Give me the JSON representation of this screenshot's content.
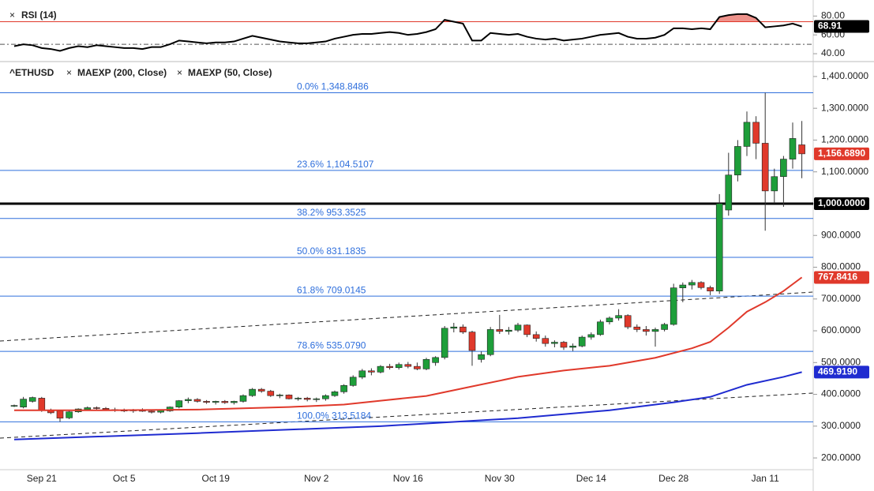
{
  "chart_data": [
    {
      "type": "line",
      "title": "RSI (14)",
      "color": "#000000",
      "values": [
        48,
        50,
        49,
        46,
        45,
        43,
        46,
        48,
        47,
        49,
        48,
        47,
        46,
        46,
        45,
        47,
        47,
        50,
        54,
        53,
        52,
        51,
        52,
        52,
        53,
        56,
        59,
        57,
        55,
        53,
        52,
        51,
        51,
        52,
        53,
        56,
        58,
        60,
        61,
        61,
        62,
        63,
        62,
        60,
        61,
        63,
        66,
        76,
        74,
        72,
        54,
        54,
        62,
        61,
        60,
        61,
        58,
        56,
        55,
        56,
        54,
        55,
        56,
        58,
        60,
        61,
        62,
        58,
        56,
        56,
        57,
        60,
        67,
        67,
        66,
        67,
        66,
        79,
        81,
        82,
        82,
        78,
        68,
        69,
        70,
        72,
        68.91
      ],
      "last_value_label": "68.91",
      "ylim": [
        35,
        92
      ],
      "yticks": [
        {
          "value": 80,
          "label": "80.00"
        },
        {
          "value": 60,
          "label": "60.00"
        },
        {
          "value": 40,
          "label": "40.00"
        }
      ],
      "levels": [
        74,
        50
      ],
      "level_colors": [
        "#e0392b",
        "#555555"
      ],
      "fill_color": "#e0392b"
    },
    {
      "type": "candlestick",
      "categories": [
        null,
        null,
        null,
        "Sep 21",
        null,
        null,
        null,
        null,
        null,
        null,
        null,
        null,
        "Oct 5",
        null,
        null,
        null,
        null,
        null,
        null,
        null,
        null,
        null,
        "Oct 19",
        null,
        null,
        null,
        null,
        null,
        null,
        null,
        null,
        null,
        null,
        "Nov 2",
        null,
        null,
        null,
        null,
        null,
        null,
        null,
        null,
        null,
        "Nov 16",
        null,
        null,
        null,
        null,
        null,
        null,
        null,
        null,
        null,
        "Nov 30",
        null,
        null,
        null,
        null,
        null,
        null,
        null,
        null,
        null,
        "Dec 14",
        null,
        null,
        null,
        null,
        null,
        null,
        null,
        null,
        "Dec 28",
        null,
        null,
        null,
        null,
        null,
        null,
        null,
        null,
        null,
        "Jan 11",
        null,
        null,
        null,
        null
      ],
      "series": [
        {
          "name": "^ETHUSD",
          "up_color": "#1e9e3a",
          "down_color": "#e0392b",
          "ohlc": [
            [
              363,
              368,
              360,
              365
            ],
            [
              360,
              392,
              356,
              385
            ],
            [
              378,
              393,
              374,
              390
            ],
            [
              388,
              392,
              345,
              350
            ],
            [
              350,
              355,
              338,
              342
            ],
            [
              348,
              350,
              313.5184,
              325
            ],
            [
              326,
              350,
              322,
              345
            ],
            [
              345,
              356,
              342,
              354
            ],
            [
              352,
              362,
              348,
              358
            ],
            [
              358,
              362,
              352,
              356
            ],
            [
              356,
              360,
              348,
              352
            ],
            [
              352,
              358,
              345,
              350
            ],
            [
              350,
              355,
              344,
              348
            ],
            [
              348,
              354,
              342,
              352
            ],
            [
              352,
              356,
              345,
              347
            ],
            [
              347,
              352,
              340,
              344
            ],
            [
              344,
              352,
              340,
              350
            ],
            [
              348,
              362,
              345,
              360
            ],
            [
              360,
              382,
              356,
              380
            ],
            [
              380,
              390,
              372,
              384
            ],
            [
              384,
              388,
              374,
              378
            ],
            [
              378,
              382,
              370,
              375
            ],
            [
              375,
              380,
              368,
              378
            ],
            [
              378,
              382,
              370,
              374
            ],
            [
              374,
              380,
              368,
              378
            ],
            [
              378,
              400,
              374,
              396
            ],
            [
              396,
              420,
              392,
              416
            ],
            [
              416,
              420,
              405,
              410
            ],
            [
              410,
              414,
              392,
              396
            ],
            [
              396,
              402,
              388,
              398
            ],
            [
              398,
              400,
              384,
              386
            ],
            [
              386,
              392,
              380,
              388
            ],
            [
              388,
              392,
              378,
              384
            ],
            [
              384,
              390,
              376,
              386
            ],
            [
              386,
              400,
              380,
              396
            ],
            [
              396,
              412,
              392,
              408
            ],
            [
              408,
              432,
              402,
              428
            ],
            [
              428,
              460,
              424,
              454
            ],
            [
              454,
              480,
              448,
              474
            ],
            [
              474,
              482,
              460,
              470
            ],
            [
              470,
              492,
              466,
              488
            ],
            [
              488,
              496,
              478,
              484
            ],
            [
              484,
              500,
              478,
              494
            ],
            [
              494,
              502,
              482,
              488
            ],
            [
              488,
              500,
              476,
              480
            ],
            [
              480,
              515,
              476,
              510
            ],
            [
              500,
              520,
              490,
              516
            ],
            [
              516,
              615,
              510,
              608
            ],
            [
              608,
              625,
              595,
              612
            ],
            [
              612,
              620,
              590,
              596
            ],
            [
              596,
              600,
              490,
              538
            ],
            [
              510,
              535,
              500,
              525
            ],
            [
              525,
              612,
              520,
              604
            ],
            [
              604,
              650,
              590,
              598
            ],
            [
              598,
              612,
              588,
              602
            ],
            [
              602,
              625,
              596,
              618
            ],
            [
              618,
              620,
              580,
              588
            ],
            [
              588,
              598,
              566,
              576
            ],
            [
              576,
              585,
              550,
              560
            ],
            [
              560,
              570,
              548,
              564
            ],
            [
              564,
              568,
              540,
              548
            ],
            [
              548,
              560,
              536,
              552
            ],
            [
              552,
              585,
              548,
              580
            ],
            [
              580,
              595,
              572,
              588
            ],
            [
              588,
              635,
              584,
              628
            ],
            [
              628,
              645,
              620,
              640
            ],
            [
              640,
              668,
              632,
              648
            ],
            [
              648,
              652,
              605,
              612
            ],
            [
              612,
              620,
              596,
              604
            ],
            [
              604,
              615,
              585,
              598
            ],
            [
              598,
              610,
              550,
              604
            ],
            [
              604,
              625,
              598,
              620
            ],
            [
              620,
              748,
              616,
              735
            ],
            [
              735,
              752,
              690,
              744
            ],
            [
              744,
              760,
              730,
              752
            ],
            [
              752,
              756,
              730,
              736
            ],
            [
              736,
              742,
              712,
              725
            ],
            [
              725,
              1030,
              716,
              1000
            ],
            [
              980,
              1160,
              962,
              1090
            ],
            [
              1090,
              1200,
              1070,
              1180
            ],
            [
              1180,
              1290,
              1150,
              1256
            ],
            [
              1256,
              1275,
              1140,
              1190
            ],
            [
              1190,
              1348.8486,
              915,
              1040
            ],
            [
              1040,
              1110,
              1000,
              1085
            ],
            [
              1085,
              1150,
              990,
              1140
            ],
            [
              1140,
              1255,
              1110,
              1205
            ],
            [
              1185,
              1260,
              1080,
              1156.689
            ]
          ]
        },
        {
          "name": "MAEXP (200, Close)",
          "color": "#1f2bd0",
          "x": [
            0,
            20,
            40,
            55,
            65,
            72,
            76,
            80,
            84,
            86
          ],
          "values": [
            258,
            278,
            300,
            325,
            350,
            375,
            392,
            430,
            455,
            470
          ]
        },
        {
          "name": "MAEXP (50, Close)",
          "color": "#e0392b",
          "x": [
            0,
            10,
            20,
            30,
            36,
            40,
            45,
            50,
            55,
            60,
            65,
            70,
            74,
            76,
            78,
            80,
            82,
            84,
            86
          ],
          "values": [
            350,
            350,
            352,
            360,
            368,
            380,
            395,
            425,
            455,
            475,
            490,
            515,
            545,
            565,
            610,
            660,
            690,
            725,
            768
          ]
        }
      ],
      "ylim": [
        163,
        1437
      ],
      "yticks": [
        {
          "value": 200,
          "label": "200.0000"
        },
        {
          "value": 300,
          "label": "300.0000"
        },
        {
          "value": 400,
          "label": "400.0000"
        },
        {
          "value": 500,
          "label": "500.0000"
        },
        {
          "value": 600,
          "label": "600.0000"
        },
        {
          "value": 700,
          "label": "700.0000"
        },
        {
          "value": 800,
          "label": "800.0000"
        },
        {
          "value": 900,
          "label": "900.0000"
        },
        {
          "value": 1000,
          "label": "1,000.0000"
        },
        {
          "value": 1100,
          "label": "1,100.0000"
        },
        {
          "value": 1200,
          "label": "1,200.0000"
        },
        {
          "value": 1300,
          "label": "1,300.0000"
        },
        {
          "value": 1400,
          "label": "1,400.0000"
        }
      ],
      "fib_color": "#2f6fdc",
      "fib_levels": [
        {
          "value": 1348.8486,
          "label": "0.0% 1,348.8486"
        },
        {
          "value": 1104.5107,
          "label": "23.6% 1,104.5107"
        },
        {
          "value": 953.3525,
          "label": "38.2% 953.3525"
        },
        {
          "value": 831.1835,
          "label": "50.0% 831.1835"
        },
        {
          "value": 709.0145,
          "label": "61.8% 709.0145"
        },
        {
          "value": 535.079,
          "label": "78.6% 535.0790"
        },
        {
          "value": 313.5184,
          "label": "100.0% 313.5184"
        }
      ],
      "price_labels": [
        {
          "value": 1156.689,
          "label": "1,156.6890",
          "color": "#e0392b"
        },
        {
          "value": 767.8416,
          "label": "767.8416",
          "color": "#e0392b"
        },
        {
          "value": 469.919,
          "label": "469.9190",
          "color": "#1f2bd0"
        },
        {
          "value": 1000,
          "label": "1,000.0000",
          "color": "#000000",
          "line": true
        }
      ]
    }
  ]
}
